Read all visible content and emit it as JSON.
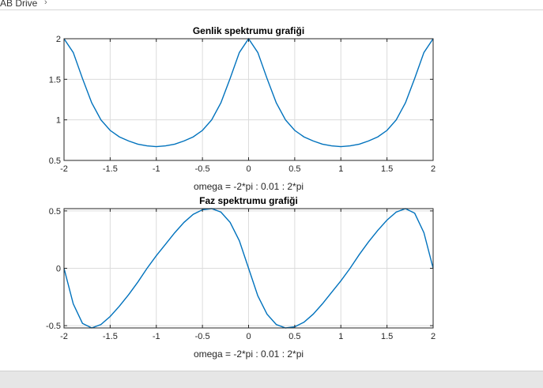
{
  "header": {
    "breadcrumb": "AB Drive",
    "chevron_icon": "chevron-right-icon"
  },
  "chart_data": [
    {
      "type": "line",
      "title": "Genlik spektrumu grafiği",
      "xlabel": "omega = -2*pi : 0.01 : 2*pi",
      "ylabel": "",
      "xlim": [
        -2,
        2
      ],
      "ylim": [
        0.5,
        2
      ],
      "xticks": [
        "-2",
        "-1.5",
        "-1",
        "-0.5",
        "0",
        "0.5",
        "1",
        "1.5",
        "2"
      ],
      "yticks": [
        "0.5",
        "1",
        "1.5",
        "2"
      ],
      "grid": true,
      "color": "#0072bd",
      "x": [
        -2,
        -1.9,
        -1.8,
        -1.7,
        -1.6,
        -1.5,
        -1.4,
        -1.3,
        -1.2,
        -1.1,
        -1.0,
        -0.9,
        -0.8,
        -0.7,
        -0.6,
        -0.5,
        -0.4,
        -0.3,
        -0.2,
        -0.1,
        0,
        0.1,
        0.2,
        0.3,
        0.4,
        0.5,
        0.6,
        0.7,
        0.8,
        0.9,
        1.0,
        1.1,
        1.2,
        1.3,
        1.4,
        1.5,
        1.6,
        1.7,
        1.8,
        1.9,
        2
      ],
      "y": [
        2.0,
        1.83,
        1.51,
        1.21,
        1.0,
        0.87,
        0.79,
        0.74,
        0.7,
        0.68,
        0.67,
        0.68,
        0.7,
        0.74,
        0.79,
        0.87,
        1.0,
        1.21,
        1.51,
        1.83,
        2.0,
        1.83,
        1.51,
        1.21,
        1.0,
        0.87,
        0.79,
        0.74,
        0.7,
        0.68,
        0.67,
        0.68,
        0.7,
        0.74,
        0.79,
        0.87,
        1.0,
        1.21,
        1.51,
        1.83,
        2.0
      ]
    },
    {
      "type": "line",
      "title": "Faz spektrumu grafiği",
      "xlabel": "omega = -2*pi : 0.01 : 2*pi",
      "ylabel": "",
      "xlim": [
        -2,
        2
      ],
      "ylim": [
        -0.52,
        0.52
      ],
      "xticks": [
        "-2",
        "-1.5",
        "-1",
        "-0.5",
        "0",
        "0.5",
        "1",
        "1.5",
        "2"
      ],
      "yticks": [
        "-0.5",
        "0",
        "0.5"
      ],
      "ytick_values": [
        -0.5,
        0,
        0.5
      ],
      "grid": true,
      "color": "#0072bd",
      "x": [
        -2,
        -1.9,
        -1.8,
        -1.7,
        -1.6,
        -1.5,
        -1.4,
        -1.3,
        -1.2,
        -1.1,
        -1.0,
        -0.9,
        -0.8,
        -0.7,
        -0.6,
        -0.5,
        -0.4,
        -0.3,
        -0.2,
        -0.1,
        0,
        0.1,
        0.2,
        0.3,
        0.4,
        0.5,
        0.6,
        0.7,
        0.8,
        0.9,
        1.0,
        1.1,
        1.2,
        1.3,
        1.4,
        1.5,
        1.6,
        1.7,
        1.8,
        1.9,
        2
      ],
      "y": [
        0,
        -0.31,
        -0.48,
        -0.52,
        -0.49,
        -0.42,
        -0.33,
        -0.23,
        -0.12,
        0.0,
        0.11,
        0.21,
        0.31,
        0.4,
        0.47,
        0.51,
        0.52,
        0.49,
        0.4,
        0.24,
        0,
        -0.24,
        -0.4,
        -0.49,
        -0.52,
        -0.51,
        -0.47,
        -0.4,
        -0.31,
        -0.21,
        -0.11,
        0.0,
        0.12,
        0.23,
        0.33,
        0.42,
        0.49,
        0.52,
        0.48,
        0.31,
        0
      ]
    }
  ]
}
